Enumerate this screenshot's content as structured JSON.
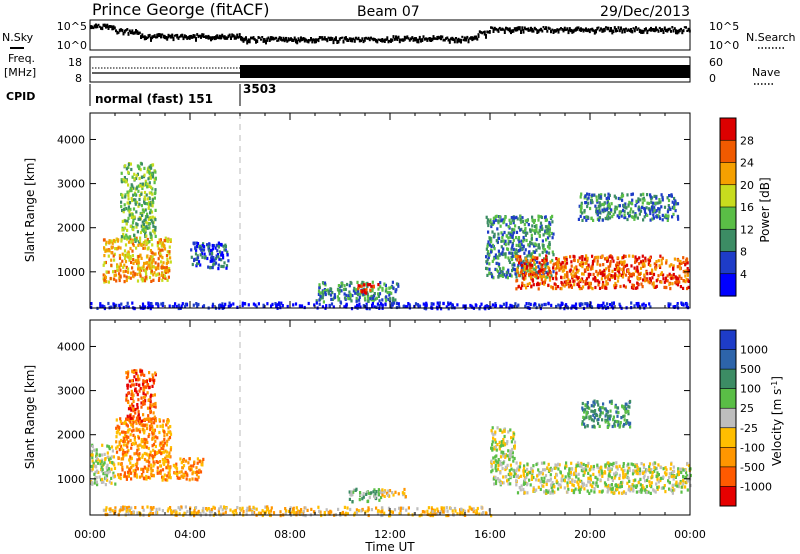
{
  "header": {
    "station": "Prince George (fitACF)",
    "beam": "Beam 07",
    "date": "29/Dec/2013"
  },
  "labels": {
    "nsky": "N.Sky",
    "nsearch": "N.Search",
    "freq_line1": "Freq.",
    "freq_line2": "[MHz]",
    "nave": "Nave",
    "cpid": "CPID",
    "noise_left_ticks": [
      "10^5",
      "10^0"
    ],
    "noise_right_ticks": [
      "10^5",
      "10^0"
    ],
    "freq_ticks": [
      "18",
      "8"
    ],
    "nave_ticks": [
      "60",
      "0"
    ],
    "cpid_names": [
      "normal (fast) 151",
      "3503"
    ]
  },
  "colors": {
    "power_scale": [
      "#0000ff",
      "#1e3cc8",
      "#3c8c64",
      "#5abe46",
      "#c8dc1e",
      "#f5a000",
      "#f05a00",
      "#dc0000"
    ],
    "velocity_scale": [
      "#1e3cc8",
      "#2d64aa",
      "#3c8c64",
      "#5abe46",
      "#bebebe",
      "#ffbe00",
      "#ff9600",
      "#ff5a00",
      "#e60000"
    ]
  },
  "chart_data": [
    {
      "type": "heatmap",
      "name": "power",
      "ylabel": "Slant Range [km]",
      "xlabel": "",
      "ylim": [
        180,
        4600
      ],
      "yticks": [
        "1000",
        "2000",
        "3000",
        "4000"
      ],
      "colorbar": {
        "label": "Power [dB]",
        "ticks": [
          "4",
          "8",
          "12",
          "16",
          "20",
          "24",
          "28"
        ]
      },
      "patches": [
        {
          "t": [
            0.5,
            3.2
          ],
          "r": [
            800,
            1800
          ],
          "level": 5
        },
        {
          "t": [
            1.2,
            2.6
          ],
          "r": [
            1700,
            3500
          ],
          "level": 3
        },
        {
          "t": [
            4.0,
            5.5
          ],
          "r": [
            1100,
            1700
          ],
          "level": 1
        },
        {
          "t": [
            9.0,
            12.3
          ],
          "r": [
            350,
            800
          ],
          "level": 2
        },
        {
          "t": [
            10.6,
            11.5
          ],
          "r": [
            550,
            750
          ],
          "level": 7
        },
        {
          "t": [
            15.8,
            18.5
          ],
          "r": [
            900,
            2300
          ],
          "level": 2
        },
        {
          "t": [
            17.0,
            23.9
          ],
          "r": [
            650,
            1400
          ],
          "level": 6
        },
        {
          "t": [
            19.5,
            23.5
          ],
          "r": [
            2200,
            2800
          ],
          "level": 2
        },
        {
          "t": [
            0.0,
            24.0
          ],
          "r": [
            200,
            330
          ],
          "level": 0
        }
      ]
    },
    {
      "type": "heatmap",
      "name": "velocity",
      "ylabel": "Slant Range [km]",
      "xlabel": "Time UT",
      "ylim": [
        180,
        4600
      ],
      "yticks": [
        "1000",
        "2000",
        "3000",
        "4000"
      ],
      "xticks": [
        "00:00",
        "04:00",
        "08:00",
        "12:00",
        "16:00",
        "20:00",
        "00:00"
      ],
      "colorbar": {
        "label": "Velocity [m s",
        "label_sup": "-1",
        "label_end": "]",
        "ticks": [
          "1000",
          "500",
          "100",
          "25",
          "-25",
          "-100",
          "-500",
          "-1000"
        ]
      },
      "patches": [
        {
          "t": [
            0.0,
            1.0
          ],
          "r": [
            900,
            1800
          ],
          "level": 4
        },
        {
          "t": [
            1.0,
            3.2
          ],
          "r": [
            1000,
            2400
          ],
          "level": 6
        },
        {
          "t": [
            1.4,
            2.6
          ],
          "r": [
            2300,
            3500
          ],
          "level": 7
        },
        {
          "t": [
            3.3,
            4.5
          ],
          "r": [
            1000,
            1500
          ],
          "level": 6
        },
        {
          "t": [
            10.3,
            11.6
          ],
          "r": [
            500,
            800
          ],
          "level": 3
        },
        {
          "t": [
            11.6,
            12.6
          ],
          "r": [
            600,
            800
          ],
          "level": 5
        },
        {
          "t": [
            16.0,
            17.0
          ],
          "r": [
            900,
            2200
          ],
          "level": 4
        },
        {
          "t": [
            17.0,
            24.0
          ],
          "r": [
            700,
            1400
          ],
          "level": 4
        },
        {
          "t": [
            19.6,
            21.6
          ],
          "r": [
            2200,
            2800
          ],
          "level": 2
        },
        {
          "t": [
            0.5,
            16.0
          ],
          "r": [
            200,
            400
          ],
          "level": 5
        }
      ]
    }
  ]
}
